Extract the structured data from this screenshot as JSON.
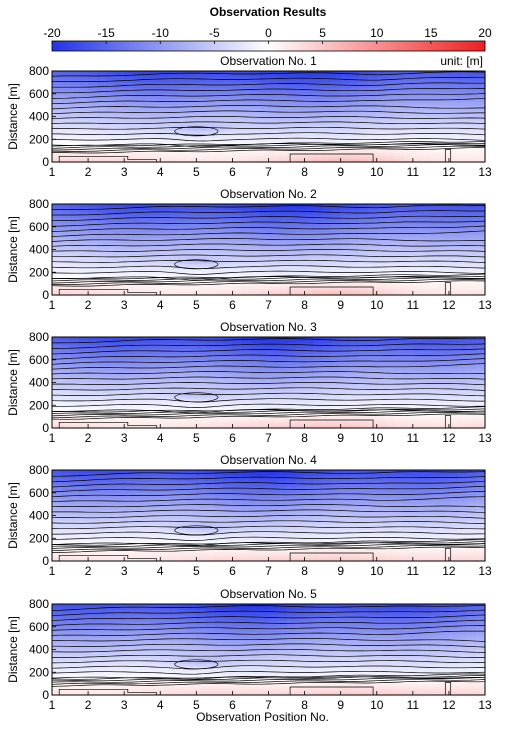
{
  "title": "Observation Results",
  "colorbar": {
    "ticks": [
      "-20",
      "-15",
      "-10",
      "-5",
      "0",
      "5",
      "10",
      "15",
      "20"
    ],
    "min": -20,
    "max": 20,
    "unit_label": "unit: [m]",
    "colors": {
      "neg": "#2233e6",
      "mid": "#ffffff",
      "pos": "#ee2020"
    }
  },
  "chart_data": [
    {
      "type": "heatmap",
      "title": "Observation No. 1",
      "ylabel": "Distance [m]",
      "xlabel": "",
      "x_ticks": [
        "1",
        "2",
        "3",
        "4",
        "5",
        "6",
        "7",
        "8",
        "9",
        "10",
        "11",
        "12",
        "13"
      ],
      "y_ticks": [
        "0",
        "200",
        "400",
        "600",
        "800"
      ],
      "xlim": [
        1,
        13
      ],
      "ylim": [
        0,
        800
      ],
      "contours": true
    },
    {
      "type": "heatmap",
      "title": "Observation No. 2",
      "ylabel": "Distance [m]",
      "xlabel": "",
      "x_ticks": [
        "1",
        "2",
        "3",
        "4",
        "5",
        "6",
        "7",
        "8",
        "9",
        "10",
        "11",
        "12",
        "13"
      ],
      "y_ticks": [
        "0",
        "200",
        "400",
        "600",
        "800"
      ],
      "xlim": [
        1,
        13
      ],
      "ylim": [
        0,
        800
      ],
      "contours": true
    },
    {
      "type": "heatmap",
      "title": "Observation No. 3",
      "ylabel": "Distance [m]",
      "xlabel": "",
      "x_ticks": [
        "1",
        "2",
        "3",
        "4",
        "5",
        "6",
        "7",
        "8",
        "9",
        "10",
        "11",
        "12",
        "13"
      ],
      "y_ticks": [
        "0",
        "200",
        "400",
        "600",
        "800"
      ],
      "xlim": [
        1,
        13
      ],
      "ylim": [
        0,
        800
      ],
      "contours": true
    },
    {
      "type": "heatmap",
      "title": "Observation No. 4",
      "ylabel": "Distance [m]",
      "xlabel": "",
      "x_ticks": [
        "1",
        "2",
        "3",
        "4",
        "5",
        "6",
        "7",
        "8",
        "9",
        "10",
        "11",
        "12",
        "13"
      ],
      "y_ticks": [
        "0",
        "200",
        "400",
        "600",
        "800"
      ],
      "xlim": [
        1,
        13
      ],
      "ylim": [
        0,
        800
      ],
      "contours": true
    },
    {
      "type": "heatmap",
      "title": "Observation No. 5",
      "ylabel": "Distance [m]",
      "xlabel": "Observation Position No.",
      "x_ticks": [
        "1",
        "2",
        "3",
        "4",
        "5",
        "6",
        "7",
        "8",
        "9",
        "10",
        "11",
        "12",
        "13"
      ],
      "y_ticks": [
        "0",
        "200",
        "400",
        "600",
        "800"
      ],
      "xlim": [
        1,
        13
      ],
      "ylim": [
        0,
        800
      ],
      "contours": true
    }
  ]
}
